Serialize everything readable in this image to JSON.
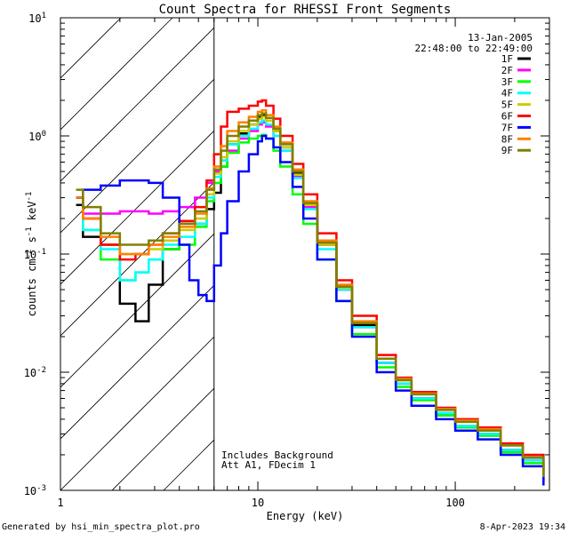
{
  "chart_data": {
    "type": "line",
    "title": "Count Spectra for RHESSI Front Segments",
    "xlabel": "Energy (keV)",
    "ylabel": "counts cm^-2 s^-1 keV^-1",
    "xscale": "log",
    "yscale": "log",
    "xlim": [
      1,
      300
    ],
    "ylim": [
      0.001,
      10
    ],
    "x_ticks": [
      {
        "value": 1,
        "label": "1"
      },
      {
        "value": 10,
        "label": "10"
      },
      {
        "value": 100,
        "label": "100"
      }
    ],
    "y_ticks": [
      {
        "value": 10,
        "base": "10",
        "exp": "1"
      },
      {
        "value": 1,
        "base": "10",
        "exp": "0"
      },
      {
        "value": 0.1,
        "base": "10",
        "exp": "-1"
      },
      {
        "value": 0.01,
        "base": "10",
        "exp": "-2"
      },
      {
        "value": 0.001,
        "base": "10",
        "exp": "-3"
      }
    ],
    "date_text": "13-Jan-2005",
    "time_range": "22:48:00 to 22:49:00",
    "annotations": [
      "Includes Background",
      "Att A1, FDecim 1"
    ],
    "hatched_region_max_kev": 6,
    "series": [
      {
        "name": "1F",
        "color": "#000000",
        "x": [
          1.2,
          1.3,
          1.6,
          2.0,
          2.4,
          2.8,
          3.3,
          4.0,
          4.8,
          5.5,
          6.0,
          6.5,
          7.0,
          8.0,
          9.0,
          10.0,
          10.5,
          11.0,
          12.0,
          13.0,
          15.0,
          17.0,
          20.0,
          25.0,
          30.0,
          40.0,
          50.0,
          60.0,
          80.0,
          100.0,
          130.0,
          170.0,
          220.0,
          280.0
        ],
        "y": [
          0.26,
          0.14,
          0.12,
          0.038,
          0.027,
          0.055,
          0.11,
          0.19,
          0.18,
          0.24,
          0.33,
          0.55,
          0.85,
          1.05,
          1.25,
          1.45,
          1.5,
          1.35,
          1.1,
          0.8,
          0.48,
          0.26,
          0.12,
          0.05,
          0.025,
          0.012,
          0.008,
          0.006,
          0.0045,
          0.0035,
          0.003,
          0.0022,
          0.0018,
          0.0012
        ]
      },
      {
        "name": "2F",
        "color": "#ff00ff",
        "x": [
          1.2,
          1.3,
          1.6,
          2.0,
          2.4,
          2.8,
          3.3,
          4.0,
          4.8,
          5.5,
          6.0,
          6.5,
          7.0,
          8.0,
          9.0,
          10.0,
          10.5,
          11.0,
          12.0,
          13.0,
          15.0,
          17.0,
          20.0,
          25.0,
          30.0,
          40.0,
          50.0,
          60.0,
          80.0,
          100.0,
          130.0,
          170.0,
          220.0,
          280.0
        ],
        "y": [
          0.3,
          0.22,
          0.22,
          0.23,
          0.23,
          0.22,
          0.23,
          0.25,
          0.3,
          0.4,
          0.5,
          0.62,
          0.75,
          0.95,
          1.1,
          1.25,
          1.3,
          1.2,
          1.0,
          0.75,
          0.45,
          0.25,
          0.12,
          0.05,
          0.024,
          0.012,
          0.008,
          0.006,
          0.0045,
          0.0035,
          0.003,
          0.0022,
          0.0018,
          0.0012
        ]
      },
      {
        "name": "3F",
        "color": "#00ff00",
        "x": [
          1.2,
          1.3,
          1.6,
          2.0,
          2.4,
          2.8,
          3.3,
          4.0,
          4.8,
          5.5,
          6.0,
          6.5,
          7.0,
          8.0,
          9.0,
          10.0,
          10.5,
          11.0,
          12.0,
          13.0,
          15.0,
          17.0,
          20.0,
          25.0,
          30.0,
          40.0,
          50.0,
          60.0,
          80.0,
          100.0,
          130.0,
          170.0,
          220.0,
          280.0
        ],
        "y": [
          0.3,
          0.16,
          0.09,
          0.06,
          0.07,
          0.09,
          0.11,
          0.12,
          0.17,
          0.28,
          0.4,
          0.55,
          0.72,
          0.88,
          0.95,
          1.0,
          1.02,
          0.95,
          0.75,
          0.55,
          0.32,
          0.18,
          0.09,
          0.04,
          0.021,
          0.011,
          0.0075,
          0.0058,
          0.0043,
          0.0034,
          0.0029,
          0.0021,
          0.0017,
          0.0011
        ]
      },
      {
        "name": "4F",
        "color": "#00ffff",
        "x": [
          1.2,
          1.3,
          1.6,
          2.0,
          2.4,
          2.8,
          3.3,
          4.0,
          4.8,
          5.5,
          6.0,
          6.5,
          7.0,
          8.0,
          9.0,
          10.0,
          10.5,
          11.0,
          12.0,
          13.0,
          15.0,
          17.0,
          20.0,
          25.0,
          30.0,
          40.0,
          50.0,
          60.0,
          80.0,
          100.0,
          130.0,
          170.0,
          220.0,
          280.0
        ],
        "y": [
          0.3,
          0.16,
          0.11,
          0.06,
          0.07,
          0.09,
          0.12,
          0.14,
          0.18,
          0.3,
          0.45,
          0.62,
          0.85,
          1.0,
          1.15,
          1.3,
          1.35,
          1.25,
          1.0,
          0.75,
          0.44,
          0.24,
          0.11,
          0.05,
          0.024,
          0.012,
          0.008,
          0.006,
          0.0045,
          0.0035,
          0.003,
          0.0022,
          0.0018,
          0.0012
        ]
      },
      {
        "name": "5F",
        "color": "#cccc00",
        "x": [
          1.2,
          1.3,
          1.6,
          2.0,
          2.4,
          2.8,
          3.3,
          4.0,
          4.8,
          5.5,
          6.0,
          6.5,
          7.0,
          8.0,
          9.0,
          10.0,
          10.5,
          11.0,
          12.0,
          13.0,
          15.0,
          17.0,
          20.0,
          25.0,
          30.0,
          40.0,
          50.0,
          60.0,
          80.0,
          100.0,
          130.0,
          170.0,
          220.0,
          280.0
        ],
        "y": [
          0.3,
          0.2,
          0.12,
          0.1,
          0.1,
          0.11,
          0.13,
          0.16,
          0.2,
          0.32,
          0.48,
          0.66,
          0.9,
          1.1,
          1.25,
          1.4,
          1.45,
          1.35,
          1.1,
          0.8,
          0.47,
          0.26,
          0.12,
          0.052,
          0.026,
          0.013,
          0.0085,
          0.0065,
          0.0048,
          0.0038,
          0.0032,
          0.0024,
          0.0019,
          0.0013
        ]
      },
      {
        "name": "6F",
        "color": "#ff0000",
        "x": [
          1.2,
          1.3,
          1.6,
          2.0,
          2.4,
          2.8,
          3.3,
          4.0,
          4.8,
          5.5,
          6.0,
          6.5,
          7.0,
          8.0,
          9.0,
          10.0,
          10.5,
          11.0,
          12.0,
          13.0,
          15.0,
          17.0,
          20.0,
          25.0,
          30.0,
          40.0,
          50.0,
          60.0,
          80.0,
          100.0,
          130.0,
          170.0,
          220.0,
          280.0
        ],
        "y": [
          0.3,
          0.2,
          0.12,
          0.09,
          0.1,
          0.12,
          0.15,
          0.19,
          0.25,
          0.42,
          0.7,
          1.2,
          1.6,
          1.7,
          1.8,
          1.95,
          2.0,
          1.8,
          1.4,
          1.0,
          0.58,
          0.32,
          0.15,
          0.06,
          0.03,
          0.014,
          0.009,
          0.0068,
          0.005,
          0.004,
          0.0034,
          0.0025,
          0.002,
          0.0014
        ]
      },
      {
        "name": "7F",
        "color": "#0000ff",
        "x": [
          1.2,
          1.3,
          1.6,
          2.0,
          2.4,
          2.8,
          3.3,
          4.0,
          4.5,
          5.0,
          5.5,
          6.0,
          6.5,
          7.0,
          8.0,
          9.0,
          10.0,
          10.5,
          11.0,
          12.0,
          13.0,
          15.0,
          17.0,
          20.0,
          25.0,
          30.0,
          40.0,
          50.0,
          60.0,
          80.0,
          100.0,
          130.0,
          170.0,
          220.0,
          280.0
        ],
        "y": [
          0.3,
          0.35,
          0.38,
          0.42,
          0.42,
          0.4,
          0.3,
          0.12,
          0.06,
          0.045,
          0.04,
          0.08,
          0.15,
          0.28,
          0.5,
          0.7,
          0.9,
          1.0,
          0.95,
          0.8,
          0.6,
          0.37,
          0.2,
          0.09,
          0.04,
          0.02,
          0.01,
          0.007,
          0.0052,
          0.004,
          0.0032,
          0.0027,
          0.002,
          0.0016,
          0.0011
        ]
      },
      {
        "name": "8F",
        "color": "#ff8000",
        "x": [
          1.2,
          1.3,
          1.6,
          2.0,
          2.4,
          2.8,
          3.3,
          4.0,
          4.8,
          5.5,
          6.0,
          6.5,
          7.0,
          8.0,
          9.0,
          10.0,
          10.5,
          11.0,
          12.0,
          13.0,
          15.0,
          17.0,
          20.0,
          25.0,
          30.0,
          40.0,
          50.0,
          60.0,
          80.0,
          100.0,
          130.0,
          170.0,
          220.0,
          280.0
        ],
        "y": [
          0.3,
          0.2,
          0.14,
          0.1,
          0.1,
          0.12,
          0.14,
          0.17,
          0.22,
          0.36,
          0.55,
          0.82,
          1.1,
          1.3,
          1.45,
          1.6,
          1.65,
          1.5,
          1.2,
          0.88,
          0.52,
          0.28,
          0.13,
          0.055,
          0.027,
          0.013,
          0.0088,
          0.0066,
          0.0049,
          0.0039,
          0.0033,
          0.0024,
          0.0019,
          0.0013
        ]
      },
      {
        "name": "9F",
        "color": "#808000",
        "x": [
          1.2,
          1.3,
          1.6,
          2.0,
          2.4,
          2.8,
          3.3,
          4.0,
          4.8,
          5.5,
          6.0,
          6.5,
          7.0,
          8.0,
          9.0,
          10.0,
          10.5,
          11.0,
          12.0,
          13.0,
          15.0,
          17.0,
          20.0,
          25.0,
          30.0,
          40.0,
          50.0,
          60.0,
          80.0,
          100.0,
          130.0,
          170.0,
          220.0,
          280.0
        ],
        "y": [
          0.35,
          0.25,
          0.15,
          0.12,
          0.12,
          0.13,
          0.15,
          0.18,
          0.23,
          0.35,
          0.52,
          0.75,
          1.0,
          1.2,
          1.35,
          1.5,
          1.55,
          1.42,
          1.15,
          0.85,
          0.5,
          0.27,
          0.125,
          0.053,
          0.026,
          0.013,
          0.0086,
          0.0065,
          0.0048,
          0.0038,
          0.0032,
          0.0024,
          0.0019,
          0.0013
        ]
      }
    ]
  },
  "footer": {
    "generated_by": "Generated by hsi_min_spectra_plot.pro",
    "timestamp": "8-Apr-2023 19:34"
  }
}
